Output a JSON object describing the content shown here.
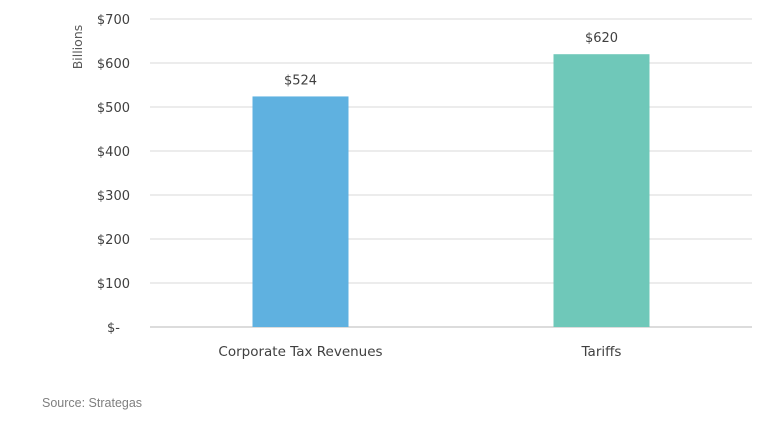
{
  "chart_data": {
    "type": "bar",
    "categories": [
      "Corporate Tax Revenues",
      "Tariffs"
    ],
    "values": [
      524,
      620
    ],
    "data_labels": [
      "$524",
      "$620"
    ],
    "colors": [
      "#5fb1e0",
      "#6fc8b9"
    ],
    "title": "",
    "xlabel": "",
    "ylabel": "Billions",
    "ylim": [
      0,
      700
    ],
    "yticks": [
      0,
      100,
      200,
      300,
      400,
      500,
      600,
      700
    ],
    "ytick_labels": [
      "$-",
      "$100",
      "$200",
      "$300",
      "$400",
      "$500",
      "$600",
      "$700"
    ],
    "grid": true,
    "legend": "none"
  },
  "source": "Source: Strategas"
}
